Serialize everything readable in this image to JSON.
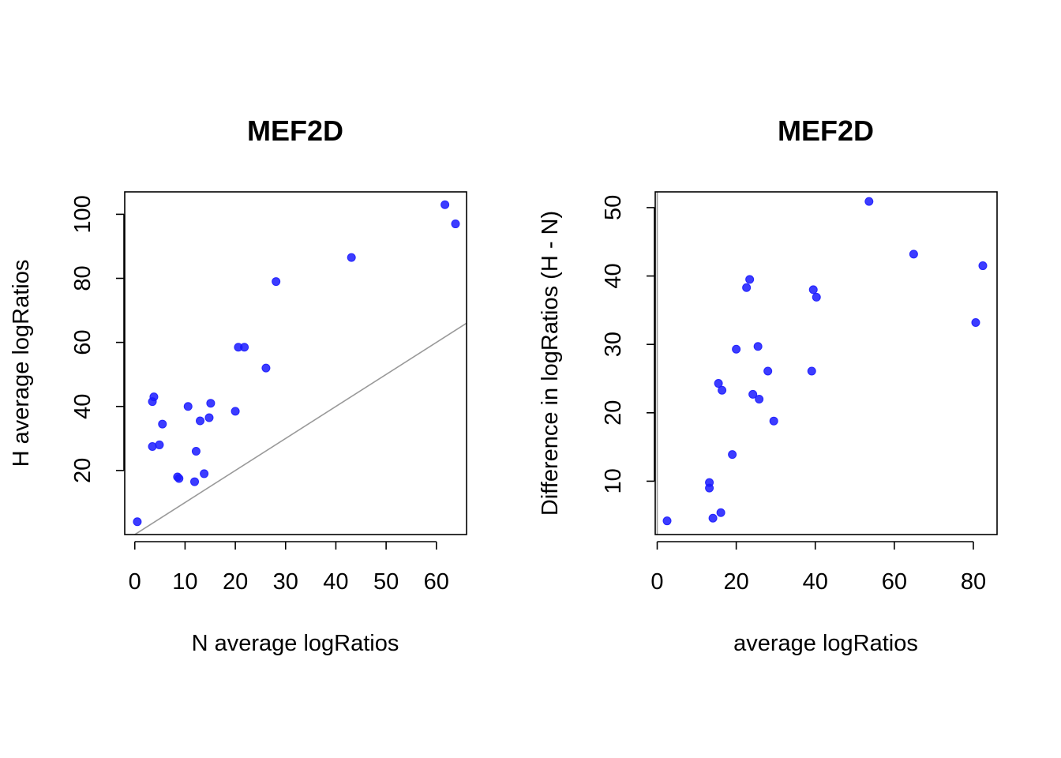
{
  "colors": {
    "point": "#1a1aff",
    "ref_line": "#999999"
  },
  "chart_data": [
    {
      "type": "scatter",
      "title": "MEF2D",
      "xlabel": "N average logRatios",
      "ylabel": "H average logRatios",
      "xlim": [
        -2,
        66
      ],
      "ylim": [
        0,
        107
      ],
      "xticks": [
        0,
        10,
        20,
        30,
        40,
        50,
        60
      ],
      "xtick_labels": [
        "0",
        "10",
        "20",
        "30",
        "40",
        "50",
        "60"
      ],
      "yticks": [
        20,
        40,
        60,
        80,
        100
      ],
      "ytick_labels": [
        "20",
        "40",
        "60",
        "80",
        "100"
      ],
      "reference_line": {
        "intercept": 0,
        "slope": 1
      },
      "grid": false,
      "x": [
        0.5,
        3.5,
        3.5,
        3.8,
        4.9,
        5.5,
        8.5,
        8.8,
        10.6,
        11.9,
        12.2,
        13.0,
        13.8,
        14.8,
        15.1,
        20.0,
        20.6,
        21.8,
        26.1,
        28.1,
        43.1,
        61.7,
        63.8
      ],
      "y": [
        4,
        41.5,
        27.5,
        43,
        28,
        34.5,
        18,
        17.5,
        40,
        16.5,
        26,
        35.5,
        19,
        36.5,
        41,
        38.5,
        58.5,
        58.5,
        52,
        79,
        86.5,
        103,
        97
      ]
    },
    {
      "type": "scatter",
      "title": "MEF2D",
      "xlabel": "average logRatios",
      "ylabel": "Difference in logRatios (H - N)",
      "xlim": [
        -0.5,
        86
      ],
      "ylim": [
        2.2,
        52.3
      ],
      "xticks": [
        0,
        20,
        40,
        60,
        80
      ],
      "xtick_labels": [
        "0",
        "20",
        "40",
        "60",
        "80"
      ],
      "yticks": [
        10,
        20,
        30,
        40,
        50
      ],
      "ytick_labels": [
        "10",
        "20",
        "30",
        "40",
        "50"
      ],
      "reference_line": {
        "x": 0
      },
      "grid": false,
      "x": [
        2.5,
        13.2,
        13.2,
        14.1,
        15.5,
        16.1,
        16.4,
        19.0,
        20.0,
        22.6,
        23.4,
        24.2,
        25.5,
        25.8,
        28.0,
        29.5,
        39.1,
        39.5,
        40.3,
        53.6,
        64.9,
        80.6,
        82.4
      ],
      "y": [
        4.2,
        9.0,
        9.8,
        4.6,
        24.3,
        5.4,
        23.3,
        13.9,
        29.3,
        38.3,
        39.5,
        22.7,
        29.7,
        22.0,
        26.1,
        18.8,
        26.1,
        38.0,
        36.9,
        50.9,
        43.2,
        33.2,
        41.5
      ]
    }
  ]
}
